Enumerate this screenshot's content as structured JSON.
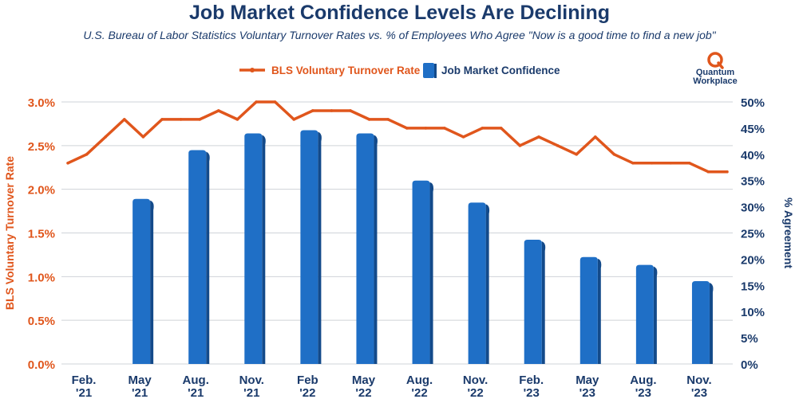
{
  "title": "Job Market Confidence Levels Are Declining",
  "subtitle": "U.S. Bureau of Labor Statistics Voluntary Turnover Rates vs. % of Employees Who Agree \"Now is a good time to find a new job\"",
  "logo": {
    "line1": "Quantum",
    "line2": "Workplace",
    "icon": "quantum-q-icon"
  },
  "colors": {
    "line": "#e0561c",
    "bar": "#1f6fc6",
    "bar_dark": "#134a8a",
    "navy": "#1a3a6b",
    "grid": "#cfd3d8"
  },
  "chart_data": {
    "type": "bar+line",
    "legend": [
      {
        "name": "BLS Voluntary Turnover Rate",
        "kind": "line"
      },
      {
        "name": "Job Market Confidence",
        "kind": "bar"
      }
    ],
    "legend_position": "top-center",
    "y_left": {
      "label": "BLS Voluntary Turnover Rate",
      "range": [
        0,
        3.0
      ],
      "ticks": [
        "0.0%",
        "0.5%",
        "1.0%",
        "1.5%",
        "2.0%",
        "2.5%",
        "3.0%"
      ]
    },
    "y_right": {
      "label": "% Agreement",
      "range": [
        0,
        50
      ],
      "ticks": [
        "0%",
        "5%",
        "10%",
        "15%",
        "20%",
        "25%",
        "30%",
        "35%",
        "40%",
        "45%",
        "50%"
      ]
    },
    "x_labels": [
      {
        "top": "Feb.",
        "bottom": "'21"
      },
      {
        "top": "May",
        "bottom": "'21"
      },
      {
        "top": "Aug.",
        "bottom": "'21"
      },
      {
        "top": "Nov.",
        "bottom": "'21"
      },
      {
        "top": "Feb",
        "bottom": "'22"
      },
      {
        "top": "May",
        "bottom": "'22"
      },
      {
        "top": "Aug.",
        "bottom": "'22"
      },
      {
        "top": "Nov.",
        "bottom": "'22"
      },
      {
        "top": "Feb.",
        "bottom": "'23"
      },
      {
        "top": "May",
        "bottom": "'23"
      },
      {
        "top": "Aug.",
        "bottom": "'23"
      },
      {
        "top": "Nov.",
        "bottom": "'23"
      }
    ],
    "bars": [
      null,
      31.5,
      40.8,
      44.0,
      44.6,
      44.0,
      35.0,
      30.8,
      23.7,
      20.4,
      18.9,
      15.8
    ],
    "line": [
      2.3,
      2.4,
      2.6,
      2.8,
      2.6,
      2.8,
      2.8,
      2.8,
      2.9,
      2.8,
      3.0,
      3.0,
      2.8,
      2.9,
      2.9,
      2.9,
      2.8,
      2.8,
      2.7,
      2.7,
      2.7,
      2.6,
      2.7,
      2.7,
      2.5,
      2.6,
      2.5,
      2.4,
      2.6,
      2.4,
      2.3,
      2.3,
      2.3,
      2.3,
      2.2,
      2.2
    ],
    "grid": true
  }
}
